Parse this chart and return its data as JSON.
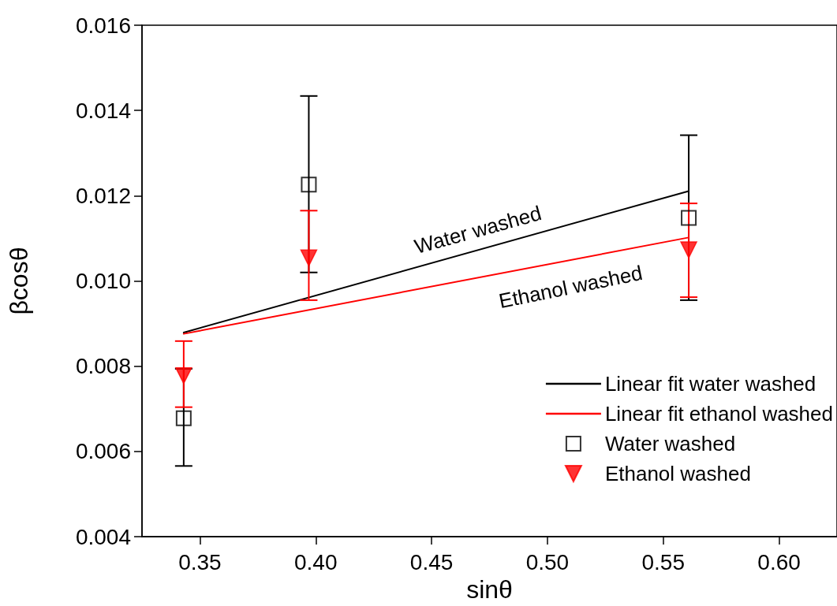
{
  "chart_data": {
    "type": "scatter",
    "xlabel": "sinθ",
    "ylabel": "βcosθ",
    "xlim": [
      0.325,
      0.625
    ],
    "xticks": [
      {
        "value": 0.35,
        "label": "0.35"
      },
      {
        "value": 0.4,
        "label": "0.40"
      },
      {
        "value": 0.45,
        "label": "0.45"
      },
      {
        "value": 0.5,
        "label": "0.50"
      },
      {
        "value": 0.55,
        "label": "0.55"
      },
      {
        "value": 0.6,
        "label": "0.60"
      }
    ],
    "ylim": [
      0.004,
      0.016
    ],
    "yticks": [
      {
        "value": 0.004,
        "label": "0.004"
      },
      {
        "value": 0.006,
        "label": "0.006"
      },
      {
        "value": 0.008,
        "label": "0.008"
      },
      {
        "value": 0.01,
        "label": "0.010"
      },
      {
        "value": 0.012,
        "label": "0.012"
      },
      {
        "value": 0.014,
        "label": "0.014"
      },
      {
        "value": 0.016,
        "label": "0.016"
      }
    ],
    "grid": false,
    "legend": "bottom right",
    "series": [
      {
        "type": "line",
        "name": "Linear fit water washed",
        "color": "#000000",
        "x": [
          0.343,
          0.561
        ],
        "values": [
          0.00879,
          0.01211
        ],
        "marker": "none",
        "line_style": "solid"
      },
      {
        "type": "line",
        "name": "Linear fit ethanol washed",
        "color": "#ff0000",
        "x": [
          0.343,
          0.561
        ],
        "values": [
          0.00876,
          0.01102
        ],
        "marker": "none",
        "line_style": "solid"
      },
      {
        "type": "scatter",
        "name": "Water washed",
        "color": "#000000",
        "marker": "square",
        "x": [
          0.343,
          0.397,
          0.561
        ],
        "values": [
          0.00678,
          0.01226,
          0.01148
        ],
        "errors": [
          [
            0.00566,
            0.00794
          ],
          [
            0.0102,
            0.01434
          ],
          [
            0.00955,
            0.01342
          ]
        ]
      },
      {
        "type": "scatter",
        "name": "Ethanol washed",
        "color": "#ff0000",
        "marker": "triangle",
        "x": [
          0.343,
          0.397,
          0.561
        ],
        "values": [
          0.00778,
          0.01054,
          0.01073
        ],
        "errors": [
          [
            0.00704,
            0.00859
          ],
          [
            0.00955,
            0.01165
          ],
          [
            0.00962,
            0.01182
          ]
        ]
      }
    ],
    "annotations": [
      {
        "text": "Water washed",
        "x": 0.47,
        "y": 0.01072
      },
      {
        "text": "Ethanol washed",
        "x": 0.51,
        "y": 0.01049
      }
    ]
  }
}
